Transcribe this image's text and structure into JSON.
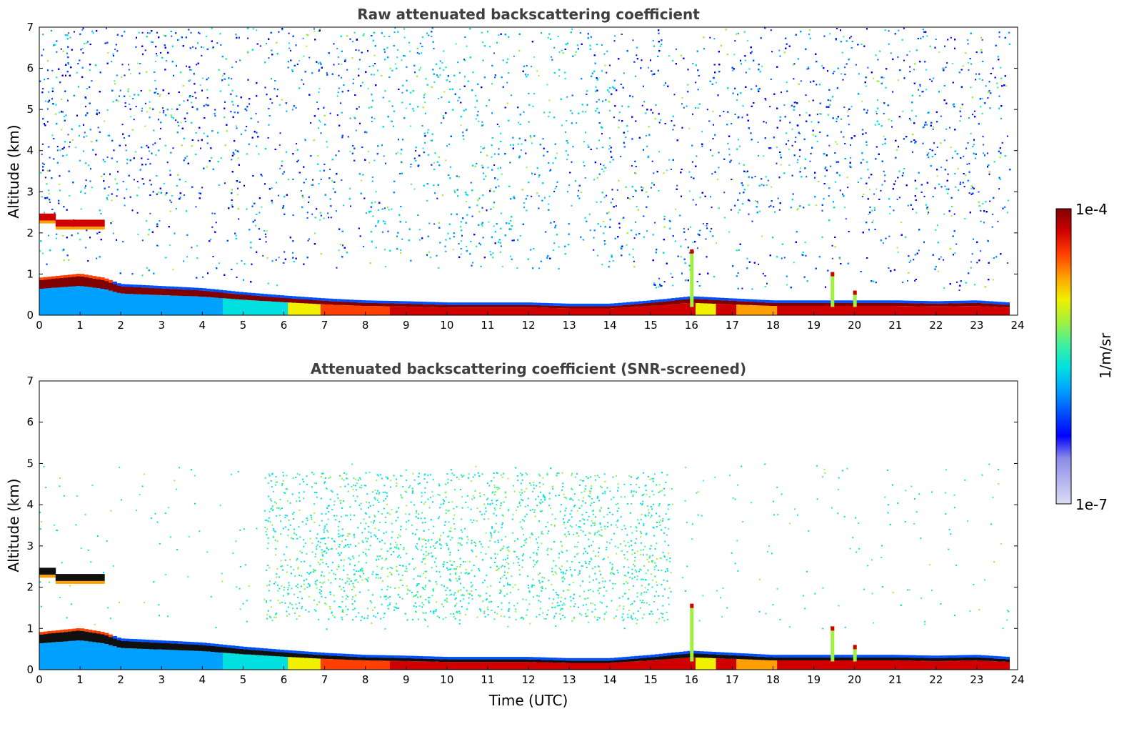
{
  "chart_data": [
    {
      "type": "heatmap",
      "title": "Raw attenuated backscattering coefficient",
      "xlabel": "",
      "ylabel": "Altitude (km)",
      "xlim": [
        0,
        24
      ],
      "ylim": [
        0,
        7
      ],
      "x_ticks": [
        0,
        1,
        2,
        3,
        4,
        5,
        6,
        7,
        8,
        9,
        10,
        11,
        12,
        13,
        14,
        15,
        16,
        17,
        18,
        19,
        20,
        21,
        22,
        23,
        24
      ],
      "y_ticks": [
        0,
        1,
        2,
        3,
        4,
        5,
        6,
        7
      ],
      "layer_top_km": [
        [
          0,
          0.85
        ],
        [
          1,
          0.95
        ],
        [
          1.6,
          0.85
        ],
        [
          2,
          0.7
        ],
        [
          3,
          0.65
        ],
        [
          4,
          0.6
        ],
        [
          5,
          0.5
        ],
        [
          6,
          0.42
        ],
        [
          7,
          0.35
        ],
        [
          8,
          0.3
        ],
        [
          9,
          0.28
        ],
        [
          10,
          0.25
        ],
        [
          11,
          0.25
        ],
        [
          12,
          0.25
        ],
        [
          13,
          0.22
        ],
        [
          14,
          0.22
        ],
        [
          15,
          0.3
        ],
        [
          16,
          0.4
        ],
        [
          17,
          0.35
        ],
        [
          18,
          0.3
        ],
        [
          19,
          0.3
        ],
        [
          20,
          0.3
        ],
        [
          21,
          0.3
        ],
        [
          22,
          0.28
        ],
        [
          23,
          0.3
        ],
        [
          23.8,
          0.25
        ]
      ],
      "elevated_layer": {
        "start_h": 0,
        "end_h": 1.6,
        "altitude_km": 2.2
      },
      "plumes": [
        {
          "time_h": 16.0,
          "top_km": 1.6
        },
        {
          "time_h": 19.45,
          "top_km": 1.05
        },
        {
          "time_h": 20.0,
          "top_km": 0.6
        }
      ],
      "noise": "dense high-altitude noise across the whole period"
    },
    {
      "type": "heatmap",
      "title": "Attenuated backscattering coefficient (SNR-screened)",
      "xlabel": "Time (UTC)",
      "ylabel": "Altitude (km)",
      "xlim": [
        0,
        24
      ],
      "ylim": [
        0,
        7
      ],
      "x_ticks": [
        0,
        1,
        2,
        3,
        4,
        5,
        6,
        7,
        8,
        9,
        10,
        11,
        12,
        13,
        14,
        15,
        16,
        17,
        18,
        19,
        20,
        21,
        22,
        23,
        24
      ],
      "y_ticks": [
        0,
        1,
        2,
        3,
        4,
        5,
        6,
        7
      ],
      "layer_top_km": [
        [
          0,
          0.85
        ],
        [
          1,
          0.95
        ],
        [
          1.6,
          0.85
        ],
        [
          2,
          0.7
        ],
        [
          3,
          0.65
        ],
        [
          4,
          0.6
        ],
        [
          5,
          0.5
        ],
        [
          6,
          0.42
        ],
        [
          7,
          0.35
        ],
        [
          8,
          0.3
        ],
        [
          9,
          0.28
        ],
        [
          10,
          0.25
        ],
        [
          11,
          0.25
        ],
        [
          12,
          0.25
        ],
        [
          13,
          0.22
        ],
        [
          14,
          0.22
        ],
        [
          15,
          0.3
        ],
        [
          16,
          0.4
        ],
        [
          17,
          0.35
        ],
        [
          18,
          0.3
        ],
        [
          19,
          0.3
        ],
        [
          20,
          0.3
        ],
        [
          21,
          0.3
        ],
        [
          22,
          0.28
        ],
        [
          23,
          0.3
        ],
        [
          23.8,
          0.25
        ]
      ],
      "elevated_layer": {
        "start_h": 0,
        "end_h": 1.6,
        "altitude_km": 2.2
      },
      "plumes": [
        {
          "time_h": 16.0,
          "top_km": 1.6
        },
        {
          "time_h": 19.45,
          "top_km": 1.05
        },
        {
          "time_h": 20.0,
          "top_km": 0.6
        }
      ],
      "noise": "sparse residual aerosol signal 1.5–4.5 km between 6 and 15 UTC"
    }
  ],
  "colorbar": {
    "label": "1/m/sr",
    "max_label": "1e-4",
    "min_label": "1e-7",
    "scale": "log",
    "range": [
      1e-07,
      0.0001
    ],
    "colors": [
      "#dcdcf5",
      "#b4b4ee",
      "#8c8ce6",
      "#0000ff",
      "#0050ff",
      "#00a0ff",
      "#00e0e0",
      "#40f0a0",
      "#a0f040",
      "#f0f000",
      "#ffa000",
      "#ff4000",
      "#d00000",
      "#800000"
    ]
  }
}
